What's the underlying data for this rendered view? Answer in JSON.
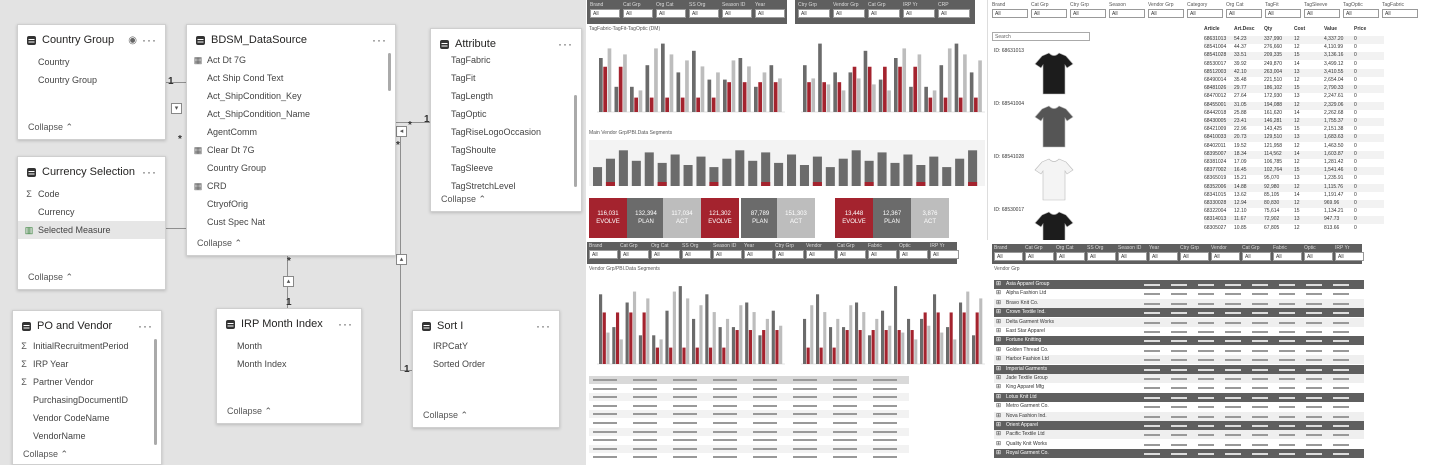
{
  "model": {
    "tables": [
      {
        "id": "country",
        "title": "Country Group",
        "fields": [
          "Country",
          "Country Group"
        ],
        "collapse": "Collapse"
      },
      {
        "id": "datasource",
        "title": "BDSM_DataSource",
        "fields": [
          "Act Dt 7G",
          "Act Ship Cond Text",
          "Act_ShipCondition_Key",
          "Act_ShipCondition_Name",
          "AgentComm",
          "Clear Dt 7G",
          "Country Group",
          "CRD",
          "CtryofOrig",
          "Cust Spec Nat"
        ],
        "collapse": "Collapse"
      },
      {
        "id": "attribute",
        "title": "Attribute",
        "fields": [
          "TagFabric",
          "TagFit",
          "TagLength",
          "TagOptic",
          "TagRiseLogoOccasion",
          "TagShoulte",
          "TagSleeve",
          "TagStretchLevel"
        ],
        "collapse": "Collapse"
      },
      {
        "id": "currency",
        "title": "Currency Selection",
        "fields": [
          "Code",
          "Currency",
          "Selected Measure"
        ],
        "collapse": "Collapse"
      },
      {
        "id": "povendor",
        "title": "PO and Vendor",
        "fields": [
          "InitialRecruitmentPeriod",
          "IRP Year",
          "Partner Vendor",
          "PurchasingDocumentID",
          "Vendor CodeName",
          "VendorName"
        ],
        "collapse": "Collapse"
      },
      {
        "id": "irpmonth",
        "title": "IRP Month Index",
        "fields": [
          "Month",
          "Month Index"
        ],
        "collapse": "Collapse"
      },
      {
        "id": "sort",
        "title": "Sort I",
        "fields": [
          "IRPCatY",
          "Sorted Order"
        ],
        "collapse": "Collapse"
      }
    ],
    "cardinality": {
      "one": "1",
      "many": "*"
    }
  },
  "report1": {
    "slicers": [
      "Brand",
      "Cat Grp",
      "Org Cat",
      "SS Org",
      "Season ID",
      "Year",
      "Ctry Grp",
      "Vendor Grp",
      "Cat Grp",
      "IRP Yr",
      "CRP"
    ],
    "slicer_value": "All",
    "subtitle1": "TagFabric-TagFit-TagOptic (DM)",
    "subtitle2": "Main Vendor Grp/PBI.Data Segments",
    "kpis": [
      {
        "value": "116,031",
        "label": "EVOLVE"
      },
      {
        "value": "132,394",
        "label": "PLAN"
      },
      {
        "value": "117,034",
        "label": "ACT"
      },
      {
        "value": "121,302",
        "label": "EVOLVE"
      },
      {
        "value": "87,789",
        "label": "PLAN"
      },
      {
        "value": "151,303",
        "label": "ACT"
      },
      {
        "value": "13,448",
        "label": "EVOLVE"
      },
      {
        "value": "12,367",
        "label": "PLAN"
      },
      {
        "value": "3,876",
        "label": "ACT"
      }
    ]
  },
  "report2": {
    "slicers": [
      "Brand",
      "Cat Grp",
      "Ctry Grp",
      "Season",
      "Vendor Grp",
      "Category",
      "Org Cat",
      "TagFit",
      "TagSleeve",
      "TagOptic",
      "TagFabric"
    ],
    "search_placeholder": "Search",
    "header": [
      "Article",
      "Art.Desc",
      "Qty",
      "Cost",
      "Value",
      "Price"
    ],
    "rows": [
      [
        "68631013",
        "54.23",
        "337,990",
        "12",
        "4,337.20",
        "0"
      ],
      [
        "68541004",
        "44.37",
        "276,660",
        "12",
        "4,110.99",
        "0"
      ],
      [
        "68541028",
        "33.51",
        "209,335",
        "15",
        "3,136.16",
        "0"
      ],
      [
        "68530017",
        "39.92",
        "249,870",
        "14",
        "3,499.12",
        "0"
      ],
      [
        "68512003",
        "42.10",
        "263,004",
        "13",
        "3,410.55",
        "0"
      ],
      [
        "68490014",
        "35.48",
        "221,510",
        "12",
        "2,654.04",
        "0"
      ],
      [
        "68481026",
        "29.77",
        "186,102",
        "15",
        "2,790.33",
        "0"
      ],
      [
        "68470012",
        "27.64",
        "172,930",
        "13",
        "2,247.61",
        "0"
      ],
      [
        "68455001",
        "31.05",
        "194,088",
        "12",
        "2,329.06",
        "0"
      ],
      [
        "68442018",
        "25.88",
        "161,620",
        "14",
        "2,262.68",
        "0"
      ],
      [
        "68430005",
        "23.41",
        "146,281",
        "12",
        "1,755.37",
        "0"
      ],
      [
        "68421009",
        "22.96",
        "143,425",
        "15",
        "2,151.38",
        "0"
      ],
      [
        "68410033",
        "20.73",
        "129,510",
        "13",
        "1,683.63",
        "0"
      ],
      [
        "68402011",
        "19.52",
        "121,958",
        "12",
        "1,463.50",
        "0"
      ],
      [
        "68395007",
        "18.34",
        "114,562",
        "14",
        "1,603.87",
        "0"
      ],
      [
        "68381024",
        "17.09",
        "106,785",
        "12",
        "1,281.42",
        "0"
      ],
      [
        "68377002",
        "16.45",
        "102,764",
        "15",
        "1,541.46",
        "0"
      ],
      [
        "68365019",
        "15.21",
        "95,070",
        "13",
        "1,235.91",
        "0"
      ],
      [
        "68352006",
        "14.88",
        "92,980",
        "12",
        "1,115.76",
        "0"
      ],
      [
        "68341015",
        "13.62",
        "85,105",
        "14",
        "1,191.47",
        "0"
      ],
      [
        "68330028",
        "12.94",
        "80,830",
        "12",
        "969.96",
        "0"
      ],
      [
        "68322004",
        "12.10",
        "75,614",
        "15",
        "1,134.21",
        "0"
      ],
      [
        "68314013",
        "11.67",
        "72,902",
        "13",
        "947.73",
        "0"
      ],
      [
        "68305027",
        "10.85",
        "67,805",
        "12",
        "813.66",
        "0"
      ]
    ],
    "product_labels": [
      "ID: 68631013",
      "ID: 68541004",
      "ID: 68541028",
      "ID: 68530017"
    ]
  },
  "report3": {
    "slicers": [
      "Brand",
      "Cat Grp",
      "Org Cat",
      "SS Org",
      "Season ID",
      "Year",
      "Ctry Grp",
      "Vendor",
      "Cat Grp",
      "Fabric",
      "Optic",
      "IRP Yr"
    ],
    "slicer_value": "All",
    "subtitle": "Vendor Grp/PBI.Data Segments"
  },
  "report4": {
    "slicers": [
      "Brand",
      "Cat Grp",
      "Org Cat",
      "SS Org",
      "Season ID",
      "Year",
      "Ctry Grp",
      "Vendor",
      "Cat Grp",
      "Fabric",
      "Optic",
      "IRP Yr"
    ],
    "subtitle": "Vendor Grp",
    "vendor_rows": [
      "Asia Apparel Group",
      "Alpha Fashion Ltd",
      "Bravo Knit Co.",
      "Crown Textile Ind.",
      "Delta Garment Works",
      "East Star Apparel",
      "Fortune Knitting",
      "Golden Thread Co.",
      "Harbor Fashion Ltd",
      "Imperial Garments",
      "Jade Textile Group",
      "King Apparel Mfg",
      "Lotus Knit Ltd",
      "Metro Garment Co.",
      "Nova Fashion Ind.",
      "Orient Apparel",
      "Pacific Textile Ltd",
      "Quality Knit Works",
      "Royal Garment Co."
    ]
  },
  "colors": {
    "red": "#a4232e",
    "gray": "#6b6b6b",
    "light": "#bdbdbd",
    "header": "#5f5f5f"
  }
}
